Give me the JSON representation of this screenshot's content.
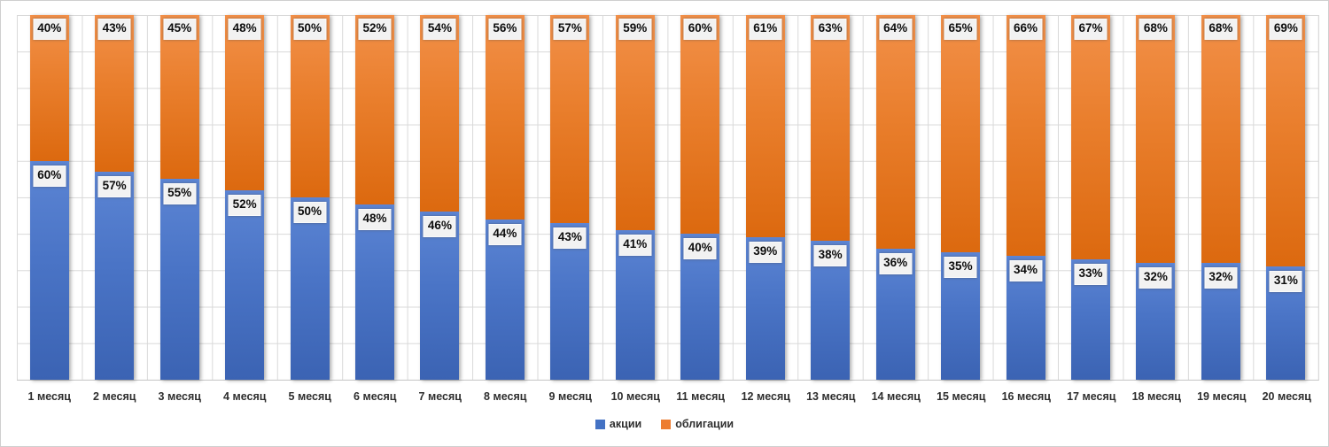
{
  "chart_data": {
    "type": "bar",
    "subtype": "stacked-100-column",
    "title": "",
    "xlabel": "",
    "ylabel": "",
    "ylim": [
      0,
      100
    ],
    "grid": true,
    "gridlines": {
      "horizontal_interval_pct": 10,
      "vertical_per_category": true,
      "color": "#d9d9d9"
    },
    "legend_position": "bottom",
    "value_suffix": "%",
    "categories": [
      "1 месяц",
      "2 месяц",
      "3 месяц",
      "4 месяц",
      "5 месяц",
      "6 месяц",
      "7 месяц",
      "8 месяц",
      "9 месяц",
      "10 месяц",
      "11 месяц",
      "12 месяц",
      "13 месяц",
      "14 месяц",
      "15 месяц",
      "16 месяц",
      "17 месяц",
      "18 месяц",
      "19 месяц",
      "20 месяц"
    ],
    "series": [
      {
        "name": "акции",
        "color": "#4472C4",
        "gradient": [
          "#5c85d4",
          "#3b63b3"
        ],
        "position": "bottom",
        "values": [
          60,
          57,
          55,
          52,
          50,
          48,
          46,
          44,
          43,
          41,
          40,
          39,
          38,
          36,
          35,
          34,
          33,
          32,
          32,
          31
        ],
        "labels": [
          "60%",
          "57%",
          "55%",
          "52%",
          "50%",
          "48%",
          "46%",
          "44%",
          "43%",
          "41%",
          "40%",
          "39%",
          "38%",
          "36%",
          "35%",
          "34%",
          "33%",
          "32%",
          "32%",
          "31%"
        ]
      },
      {
        "name": "облигации",
        "color": "#ED7D31",
        "gradient": [
          "#f29049",
          "#dc690f"
        ],
        "position": "top",
        "values": [
          40,
          43,
          45,
          48,
          50,
          52,
          54,
          56,
          57,
          59,
          60,
          61,
          63,
          64,
          65,
          66,
          67,
          68,
          68,
          69
        ],
        "labels": [
          "40%",
          "43%",
          "45%",
          "48%",
          "50%",
          "52%",
          "54%",
          "56%",
          "57%",
          "59%",
          "60%",
          "61%",
          "63%",
          "64%",
          "65%",
          "66%",
          "67%",
          "68%",
          "68%",
          "69%"
        ]
      }
    ]
  },
  "legend": {
    "items": [
      {
        "label": "акции",
        "color": "#4472C4"
      },
      {
        "label": "облигации",
        "color": "#ED7D31"
      }
    ]
  }
}
